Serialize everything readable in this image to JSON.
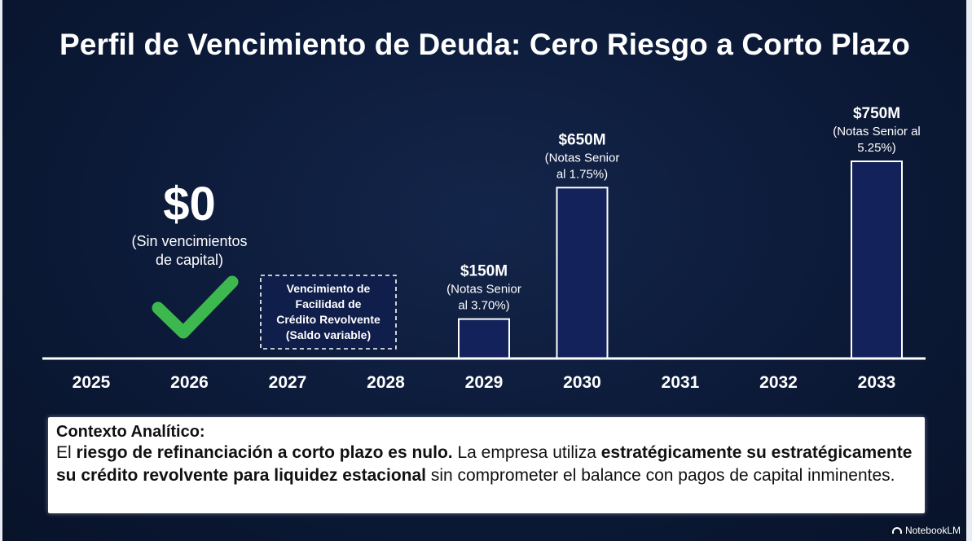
{
  "chart_data": {
    "type": "bar",
    "title": "Perfil de Vencimiento de Deuda: Cero Riesgo a Corto Plazo",
    "categories": [
      "2025",
      "2026",
      "2027",
      "2028",
      "2029",
      "2030",
      "2031",
      "2032",
      "2033"
    ],
    "values": [
      0,
      0,
      0,
      0,
      150,
      650,
      0,
      0,
      750
    ],
    "ylim": [
      0,
      750
    ],
    "bar_labels": [
      {
        "category": "2029",
        "amount": "$150M",
        "note_lines": [
          "(Notas Senior",
          "al 3.70%)"
        ]
      },
      {
        "category": "2030",
        "amount": "$650M",
        "note_lines": [
          "(Notas Senior",
          "al 1.75%)"
        ]
      },
      {
        "category": "2033",
        "amount": "$750M",
        "note_lines": [
          "(Notas Senior al",
          "5.25%)"
        ]
      }
    ],
    "annotations": {
      "zero_2026": {
        "amount": "$0",
        "note_lines": [
          "(Sin vencimientos",
          "de capital)"
        ],
        "icon": "checkmark-icon",
        "icon_color": "#3cb84e"
      },
      "revolver_2027": {
        "lines": [
          "Vencimiento de",
          "Facilidad de",
          "Crédito Revolvente",
          "(Saldo variable)"
        ]
      }
    },
    "colors": {
      "bar_fill": "#13225a",
      "bar_stroke": "#ffffff",
      "axis": "#ffffff"
    }
  },
  "context": {
    "heading": "Contexto Analítico:",
    "p1": "El ",
    "b1": "riesgo de refinanciación a corto plazo es nulo.",
    "p2": " La empresa utiliza ",
    "b2": "estratégicamente su estratégicamente su crédito revolvente para liquidez estacional",
    "p3": " sin comprometer el balance con pagos de capital inminentes."
  },
  "brand": {
    "name": "NotebookLM"
  }
}
